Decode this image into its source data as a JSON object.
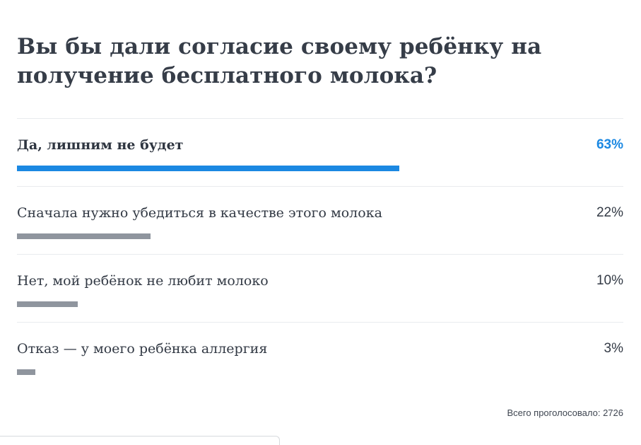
{
  "poll": {
    "question": "Вы бы дали согласие своему ребёнку на получение бесплатного молока?",
    "options": [
      {
        "label": "Да, лишним не будет",
        "percent_text": "63%",
        "share": 0.63,
        "leading": true
      },
      {
        "label": "Сначала нужно убедиться в качестве этого молока",
        "percent_text": "22%",
        "share": 0.22,
        "leading": false
      },
      {
        "label": "Нет, мой ребёнок не любит молоко",
        "percent_text": "10%",
        "share": 0.1,
        "leading": false
      },
      {
        "label": "Отказ — у моего ребёнка аллергия",
        "percent_text": "3%",
        "share": 0.03,
        "leading": false
      }
    ],
    "total_text": "Всего проголосовало: 2726"
  },
  "colors": {
    "leading_bar": "#1b88e2",
    "other_bar": "#8f959e",
    "text": "#333a45",
    "divider": "#e9ebee"
  }
}
